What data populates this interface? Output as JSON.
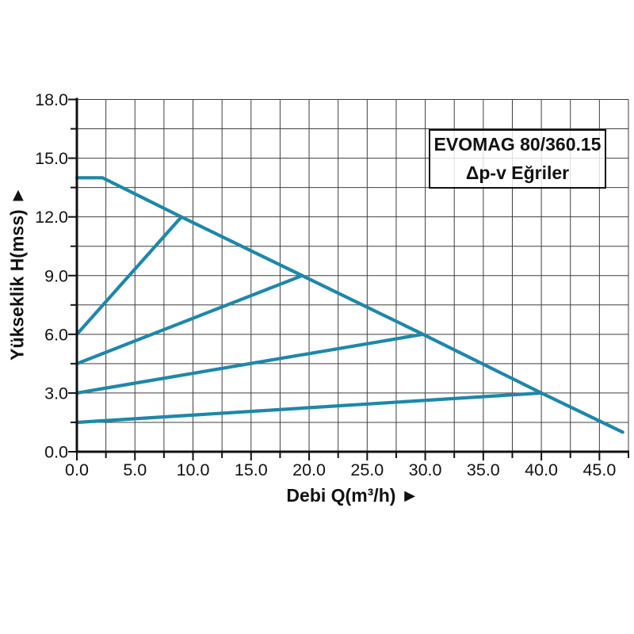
{
  "title_box": {
    "line1": "EVOMAG 80/360.15",
    "line2": "Δp-v Eğriler"
  },
  "axes": {
    "x_label": "Debi Q(m³/h) ►",
    "y_label": "Yükseklik H(mss) ►"
  },
  "chart_data": {
    "type": "line",
    "title": "EVOMAG 80/360.15 — Δp-v Eğriler",
    "xlabel": "Debi Q(m³/h)",
    "ylabel": "Yükseklik H(mss)",
    "xlim": [
      0,
      47.5
    ],
    "ylim": [
      0,
      18
    ],
    "x_minor_step": 2.5,
    "y_minor_step": 1.5,
    "x_major_ticks": [
      0,
      5,
      10,
      15,
      20,
      25,
      30,
      35,
      40,
      45
    ],
    "x_tick_labels": [
      "0.0",
      "5.0",
      "10.0",
      "15.0",
      "20.0",
      "25.0",
      "30.0",
      "35.0",
      "40.0",
      "45.0"
    ],
    "y_major_ticks": [
      0,
      3,
      6,
      9,
      12,
      15,
      18
    ],
    "y_tick_labels": [
      "0.0",
      "3.0",
      "6.0",
      "9.0",
      "12.0",
      "15.0",
      "18.0"
    ],
    "grid": true,
    "legend": "none",
    "colors": {
      "curve": "#1f87a8",
      "grid": "#3f3f3f",
      "axis": "#111111",
      "text": "#111111"
    },
    "series": [
      {
        "name": "curve-max",
        "points": [
          [
            0,
            14
          ],
          [
            2.2,
            14
          ],
          [
            9,
            12
          ],
          [
            19.4,
            9
          ],
          [
            29.8,
            6
          ],
          [
            40,
            3
          ],
          [
            47,
            1.0
          ]
        ]
      },
      {
        "name": "curve-dpv-1",
        "points": [
          [
            0,
            6
          ],
          [
            9,
            12
          ]
        ]
      },
      {
        "name": "curve-dpv-2",
        "points": [
          [
            0,
            4.5
          ],
          [
            19.4,
            9
          ]
        ]
      },
      {
        "name": "curve-dpv-3",
        "points": [
          [
            0,
            3
          ],
          [
            29.8,
            6
          ]
        ]
      },
      {
        "name": "curve-dpv-4",
        "points": [
          [
            0,
            1.5
          ],
          [
            40,
            3
          ]
        ]
      }
    ]
  }
}
